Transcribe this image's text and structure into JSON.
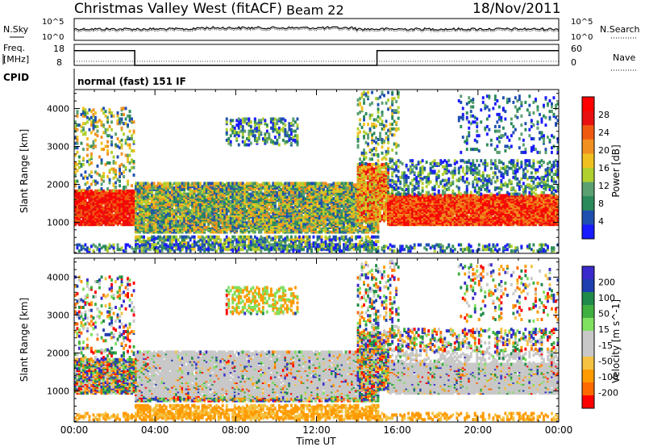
{
  "header": {
    "station": "Christmas Valley West (fitACF)",
    "beam": "Beam 22",
    "date": "18/Nov/2011"
  },
  "labels": {
    "nsky": "N.Sky",
    "nsearch": "N.Search",
    "freq_line1": "Freq.",
    "freq_line2": "[MHz]",
    "nave": "Nave",
    "cpid": "CPID",
    "cpid_value": "normal (fast) 151 IF"
  },
  "colors": {
    "power_scale": [
      "#1a1aff",
      "#1f4fb0",
      "#2a8a5a",
      "#5aa070",
      "#b0d030",
      "#f0c020",
      "#f09020",
      "#f05a10",
      "#e81010",
      "#ff0000"
    ],
    "velocity_scale": [
      "#ff0000",
      "#ff6a00",
      "#ff9a00",
      "#f5c242",
      "#c8c8c8",
      "#c8c8c8",
      "#80e060",
      "#40b040",
      "#1f8a4a",
      "#1f3fb0",
      "#3a2acc"
    ]
  },
  "chart_data": [
    {
      "type": "line",
      "name": "noise-panel",
      "ylabels_left": [
        "10^5",
        "10^0"
      ],
      "ylabels_right": [
        "10^5",
        "10^0"
      ],
      "x_ticks": [
        "00:00",
        "04:00",
        "08:00",
        "12:00",
        "16:00",
        "20:00",
        "00:00"
      ]
    },
    {
      "type": "line",
      "name": "frequency-nave-panel",
      "left_ticks": [
        "18",
        "8"
      ],
      "right_ticks": [
        "60",
        "0"
      ],
      "freq_x_hours": [
        0,
        3,
        3,
        15,
        15,
        24
      ],
      "freq_values": [
        15,
        15,
        8,
        8,
        15,
        15
      ],
      "ylim": [
        8,
        18
      ]
    },
    {
      "type": "heatmap",
      "name": "power-panel",
      "ylabel": "Slant Range [km]",
      "yticks": [
        1000,
        2000,
        3000,
        4000
      ],
      "ylim": [
        180,
        4500
      ],
      "xlim_hours": [
        0,
        24
      ],
      "colorbar_label": "Power [dB]",
      "colorbar_ticks": [
        "4",
        "8",
        "12",
        "16",
        "20",
        "24",
        "28"
      ]
    },
    {
      "type": "heatmap",
      "name": "velocity-panel",
      "ylabel": "Slant Range [km]",
      "yticks": [
        1000,
        2000,
        3000,
        4000
      ],
      "ylim": [
        180,
        4500
      ],
      "xlim_hours": [
        0,
        24
      ],
      "colorbar_label": "Velocity [m s^-1]",
      "colorbar_ticks": [
        "200",
        "100",
        "50",
        "15",
        "-15",
        "-50",
        "-100",
        "-200"
      ],
      "xlabel": "Time UT",
      "x_ticks": [
        "00:00",
        "04:00",
        "08:00",
        "12:00",
        "16:00",
        "20:00",
        "00:00"
      ]
    }
  ]
}
